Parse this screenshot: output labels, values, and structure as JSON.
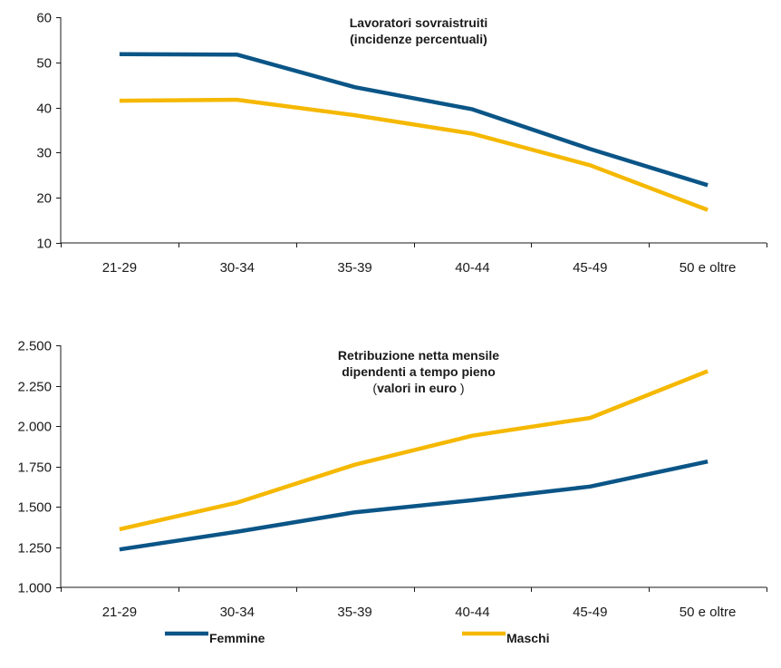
{
  "colors": {
    "femmine": "#0b5587",
    "maschi": "#f5b800"
  },
  "legend": [
    {
      "name": "Femmine",
      "color": "#0b5587"
    },
    {
      "name": "Maschi",
      "color": "#f5b800"
    }
  ],
  "chart_data": [
    {
      "type": "line",
      "title_lines": [
        {
          "parts": [
            {
              "text": "Lavoratori sovraistruiti",
              "bold": true
            }
          ]
        },
        {
          "parts": [
            {
              "text": "(incidenze percentuali)",
              "bold": true
            }
          ]
        }
      ],
      "categories": [
        "21-29",
        "30-34",
        "35-39",
        "40-44",
        "45-49",
        "50 e oltre"
      ],
      "ylim": [
        10,
        60
      ],
      "yticks": [
        10,
        20,
        30,
        40,
        50,
        60
      ],
      "ytick_labels": [
        "10",
        "20",
        "30",
        "40",
        "50",
        "60"
      ],
      "series": [
        {
          "name": "Femmine",
          "color": "#0b5587",
          "points": [
            [
              0.5,
              51.8
            ],
            [
              1.5,
              51.7
            ],
            [
              2.5,
              44.5
            ],
            [
              3.5,
              39.6
            ],
            [
              4.5,
              30.8
            ],
            [
              5.5,
              22.8
            ]
          ]
        },
        {
          "name": "Maschi",
          "color": "#f5b800",
          "points": [
            [
              0.5,
              41.5
            ],
            [
              1.5,
              41.7
            ],
            [
              2.5,
              38.3
            ],
            [
              3.5,
              34.2
            ],
            [
              4.5,
              27.2
            ],
            [
              5.5,
              17.3
            ]
          ]
        }
      ]
    },
    {
      "type": "line",
      "title_lines": [
        {
          "parts": [
            {
              "text": "Retribuzione netta mensile",
              "bold": true
            }
          ]
        },
        {
          "parts": [
            {
              "text": "dipendenti a tempo pieno",
              "bold": true
            }
          ]
        },
        {
          "parts": [
            {
              "text": "(",
              "bold": false
            },
            {
              "text": "valori in euro",
              "bold": true
            },
            {
              "text": " )",
              "bold": false
            }
          ]
        }
      ],
      "categories": [
        "21-29",
        "30-34",
        "35-39",
        "40-44",
        "45-49",
        "50 e oltre"
      ],
      "ylim": [
        1000,
        2500
      ],
      "yticks": [
        1000,
        1250,
        1500,
        1750,
        2000,
        2250,
        2500
      ],
      "ytick_labels": [
        "1.000",
        "1.250",
        "1.500",
        "1.750",
        "2.000",
        "2.250",
        "2.500"
      ],
      "series": [
        {
          "name": "Femmine",
          "color": "#0b5587",
          "points": [
            [
              0.5,
              1235
            ],
            [
              1.5,
              1345
            ],
            [
              2.5,
              1465
            ],
            [
              3.5,
              1540
            ],
            [
              4.5,
              1625
            ],
            [
              5.5,
              1780
            ]
          ]
        },
        {
          "name": "Maschi",
          "color": "#f5b800",
          "points": [
            [
              0.5,
              1360
            ],
            [
              1.5,
              1525
            ],
            [
              2.5,
              1760
            ],
            [
              3.5,
              1940
            ],
            [
              4.5,
              2050
            ],
            [
              5.5,
              2340
            ]
          ]
        }
      ]
    }
  ]
}
